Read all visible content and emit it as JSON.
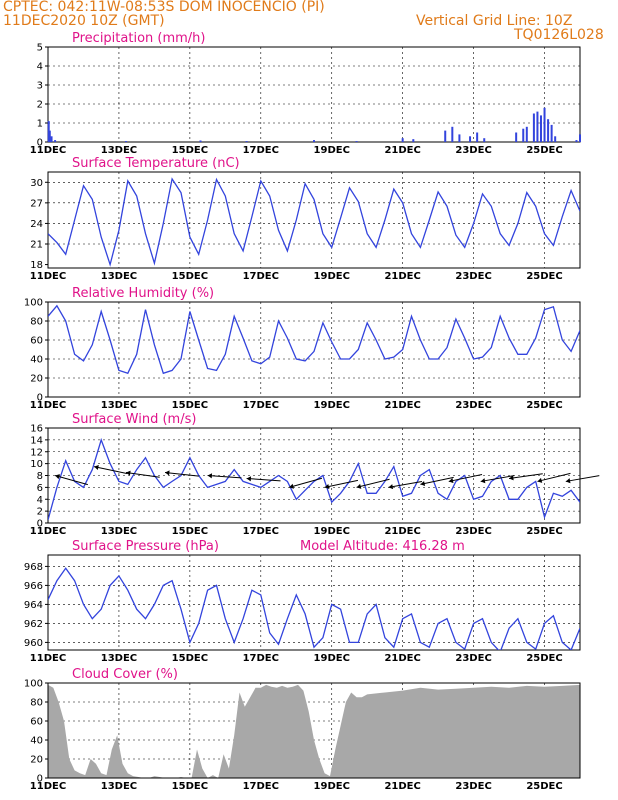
{
  "header": {
    "line1": "CPTEC:   042:11W-08:53S   DOM INOCENCIO (PI)",
    "date": "11DEC2020 10Z (GMT)",
    "grid_note": "Vertical Grid Line: 10Z",
    "code": "TQ0126L028"
  },
  "colors": {
    "header": "#e07b1a",
    "title": "#e0138a",
    "series": "#3344dd",
    "cloud": "#a8a8a8"
  },
  "x_ticks": [
    "11DEC",
    "13DEC",
    "15DEC",
    "17DEC",
    "19DEC",
    "21DEC",
    "23DEC",
    "25DEC"
  ],
  "chart_data": [
    {
      "id": "precip",
      "type": "bar",
      "title": "Precipitation (mm/h)",
      "ylim": [
        0,
        5
      ],
      "yticks": [
        0,
        1,
        2,
        3,
        4,
        5
      ],
      "values": [
        [
          0.02,
          1.1
        ],
        [
          0.05,
          0.6
        ],
        [
          0.1,
          0.3
        ],
        [
          0.2,
          0.1
        ],
        [
          2.2,
          0.05
        ],
        [
          4.3,
          0.08
        ],
        [
          5.6,
          0.05
        ],
        [
          7.5,
          0.1
        ],
        [
          8.7,
          0.05
        ],
        [
          10.0,
          0.2
        ],
        [
          10.3,
          0.15
        ],
        [
          11.2,
          0.6
        ],
        [
          11.4,
          0.8
        ],
        [
          11.6,
          0.4
        ],
        [
          11.9,
          0.3
        ],
        [
          12.1,
          0.5
        ],
        [
          12.3,
          0.2
        ],
        [
          13.2,
          0.5
        ],
        [
          13.4,
          0.7
        ],
        [
          13.5,
          0.8
        ],
        [
          13.7,
          1.5
        ],
        [
          13.8,
          1.6
        ],
        [
          13.9,
          1.4
        ],
        [
          14.0,
          1.8
        ],
        [
          14.1,
          1.2
        ],
        [
          14.2,
          0.9
        ],
        [
          14.3,
          0.3
        ],
        [
          14.9,
          0.1
        ],
        [
          15.0,
          0.4
        ]
      ]
    },
    {
      "id": "temp",
      "type": "line",
      "title": "Surface Temperature (nC)",
      "ylim": [
        17.5,
        31.5
      ],
      "yticks": [
        18,
        21,
        24,
        27,
        30
      ],
      "x": [
        0,
        0.25,
        0.5,
        0.75,
        1,
        1.25,
        1.5,
        1.75,
        2,
        2.25,
        2.5,
        2.75,
        3,
        3.25,
        3.5,
        3.75,
        4,
        4.25,
        4.5,
        4.75,
        5,
        5.25,
        5.5,
        5.75,
        6,
        6.25,
        6.5,
        6.75,
        7,
        7.25,
        7.5,
        7.75,
        8,
        8.25,
        8.5,
        8.75,
        9,
        9.25,
        9.5,
        9.75,
        10,
        10.25,
        10.5,
        10.75,
        11,
        11.25,
        11.5,
        11.75,
        12,
        12.25,
        12.5,
        12.75,
        13,
        13.25,
        13.5,
        13.75,
        14,
        14.25,
        14.5,
        14.75,
        15
      ],
      "values": [
        22.5,
        21.2,
        19.5,
        24.5,
        29.5,
        27.5,
        22.0,
        18.0,
        23.0,
        30.2,
        28.0,
        22.5,
        18.2,
        24.0,
        30.5,
        28.5,
        22.0,
        19.5,
        24.5,
        30.4,
        28.0,
        22.5,
        20.0,
        25.0,
        30.2,
        28.0,
        23.0,
        20.0,
        24.5,
        29.8,
        27.5,
        22.5,
        20.5,
        24.8,
        29.2,
        27.2,
        22.5,
        20.5,
        24.5,
        29.0,
        27.0,
        22.5,
        20.5,
        24.5,
        28.6,
        26.5,
        22.3,
        20.5,
        24.0,
        28.3,
        26.5,
        22.5,
        20.8,
        24.0,
        28.5,
        26.5,
        22.5,
        20.8,
        25.0,
        28.8,
        25.8
      ]
    },
    {
      "id": "rh",
      "type": "line",
      "title": "Relative Humidity (%)",
      "ylim": [
        0,
        100
      ],
      "yticks": [
        0,
        20,
        40,
        60,
        80,
        100
      ],
      "x": [
        0,
        0.25,
        0.5,
        0.75,
        1,
        1.25,
        1.5,
        1.75,
        2,
        2.25,
        2.5,
        2.75,
        3,
        3.25,
        3.5,
        3.75,
        4,
        4.25,
        4.5,
        4.75,
        5,
        5.25,
        5.5,
        5.75,
        6,
        6.25,
        6.5,
        6.75,
        7,
        7.25,
        7.5,
        7.75,
        8,
        8.25,
        8.5,
        8.75,
        9,
        9.25,
        9.5,
        9.75,
        10,
        10.25,
        10.5,
        10.75,
        11,
        11.25,
        11.5,
        11.75,
        12,
        12.25,
        12.5,
        12.75,
        13,
        13.25,
        13.5,
        13.75,
        14,
        14.25,
        14.5,
        14.75,
        15
      ],
      "values": [
        85,
        96,
        80,
        45,
        38,
        55,
        90,
        60,
        28,
        25,
        45,
        92,
        55,
        25,
        28,
        40,
        90,
        60,
        30,
        28,
        45,
        85,
        62,
        38,
        35,
        42,
        80,
        62,
        40,
        38,
        48,
        78,
        58,
        40,
        40,
        50,
        78,
        60,
        40,
        42,
        50,
        85,
        60,
        40,
        40,
        52,
        82,
        62,
        40,
        42,
        52,
        85,
        62,
        45,
        45,
        62,
        92,
        95,
        60,
        48,
        70
      ]
    },
    {
      "id": "wind",
      "type": "line",
      "title": "Surface Wind (m/s)",
      "ylim": [
        0,
        16
      ],
      "yticks": [
        0,
        2,
        4,
        6,
        8,
        10,
        12,
        14,
        16
      ],
      "x": [
        0,
        0.25,
        0.5,
        0.75,
        1,
        1.25,
        1.5,
        1.75,
        2,
        2.25,
        2.5,
        2.75,
        3,
        3.25,
        3.5,
        3.75,
        4,
        4.25,
        4.5,
        4.75,
        5,
        5.25,
        5.5,
        5.75,
        6,
        6.25,
        6.5,
        6.75,
        7,
        7.25,
        7.5,
        7.75,
        8,
        8.25,
        8.5,
        8.75,
        9,
        9.25,
        9.5,
        9.75,
        10,
        10.25,
        10.5,
        10.75,
        11,
        11.25,
        11.5,
        11.75,
        12,
        12.25,
        12.5,
        12.75,
        13,
        13.25,
        13.5,
        13.75,
        14,
        14.25,
        14.5,
        14.75,
        15
      ],
      "values": [
        0.5,
        6,
        10.5,
        7,
        6,
        9,
        14,
        10,
        7,
        6.5,
        9,
        11,
        8,
        6,
        7,
        8,
        11,
        8,
        6,
        6.5,
        7,
        9,
        7,
        6.5,
        6,
        7,
        8,
        7,
        4,
        5.5,
        7,
        8,
        3.5,
        5,
        7,
        10,
        5,
        5,
        7,
        9.5,
        4.5,
        5,
        8,
        9,
        5,
        4,
        7,
        8,
        4,
        4.5,
        7,
        8,
        4,
        4,
        6,
        7,
        1,
        5,
        4.5,
        5.5,
        3.5
      ],
      "barbs": [
        [
          0.2,
          8,
          -0.8
        ],
        [
          1.3,
          9.5,
          -0.6
        ],
        [
          2.2,
          8.5,
          -0.4
        ],
        [
          3.3,
          8.5,
          -0.3
        ],
        [
          4.5,
          8,
          -0.2
        ],
        [
          5.6,
          7.5,
          -0.2
        ],
        [
          6.8,
          6,
          0.8
        ],
        [
          7.8,
          6,
          0.6
        ],
        [
          8.7,
          6,
          0.7
        ],
        [
          9.6,
          6,
          0.5
        ],
        [
          10.5,
          6.5,
          0.6
        ],
        [
          11.3,
          7,
          0.6
        ],
        [
          12.2,
          7,
          0.5
        ],
        [
          13.0,
          7.5,
          0.4
        ],
        [
          13.8,
          7,
          0.7
        ],
        [
          14.6,
          7,
          0.5
        ]
      ]
    },
    {
      "id": "press",
      "type": "line",
      "title": "Surface Pressure (hPa)",
      "annotation": "Model Altitude: 416.28 m",
      "ylim": [
        959.2,
        969.2
      ],
      "yticks": [
        960,
        962,
        964,
        966,
        968
      ],
      "x": [
        0,
        0.25,
        0.5,
        0.75,
        1,
        1.25,
        1.5,
        1.75,
        2,
        2.25,
        2.5,
        2.75,
        3,
        3.25,
        3.5,
        3.75,
        4,
        4.25,
        4.5,
        4.75,
        5,
        5.25,
        5.5,
        5.75,
        6,
        6.25,
        6.5,
        6.75,
        7,
        7.25,
        7.5,
        7.75,
        8,
        8.25,
        8.5,
        8.75,
        9,
        9.25,
        9.5,
        9.75,
        10,
        10.25,
        10.5,
        10.75,
        11,
        11.25,
        11.5,
        11.75,
        12,
        12.25,
        12.5,
        12.75,
        13,
        13.25,
        13.5,
        13.75,
        14,
        14.25,
        14.5,
        14.75,
        15
      ],
      "values": [
        964.5,
        966.5,
        967.8,
        966.5,
        964.0,
        962.5,
        963.5,
        966.0,
        967.0,
        965.5,
        963.5,
        962.5,
        964.0,
        966.0,
        966.5,
        963.5,
        960.0,
        962.0,
        965.5,
        966.0,
        962.5,
        960.0,
        962.5,
        965.5,
        965.0,
        961.0,
        959.8,
        962.5,
        965.0,
        963.0,
        959.5,
        960.5,
        964.0,
        963.5,
        960.0,
        960.0,
        963.0,
        964.0,
        960.5,
        959.5,
        962.5,
        963.0,
        960.0,
        959.5,
        962.0,
        962.5,
        960.0,
        959.3,
        962.0,
        962.5,
        960.0,
        959.0,
        961.5,
        962.5,
        960.0,
        959.3,
        962.0,
        962.8,
        960.0,
        959.2,
        961.5
      ]
    },
    {
      "id": "cloud",
      "type": "area",
      "title": "Cloud Cover (%)",
      "ylim": [
        0,
        100
      ],
      "yticks": [
        0,
        20,
        40,
        60,
        80,
        100
      ],
      "x": [
        0,
        0.15,
        0.3,
        0.45,
        0.6,
        0.75,
        0.9,
        1.05,
        1.2,
        1.35,
        1.5,
        1.65,
        1.8,
        1.95,
        2.1,
        2.25,
        2.4,
        2.55,
        2.7,
        2.85,
        3.0,
        3.15,
        3.3,
        3.45,
        3.6,
        3.75,
        3.9,
        4.05,
        4.2,
        4.35,
        4.5,
        4.65,
        4.8,
        4.95,
        5.1,
        5.25,
        5.4,
        5.55,
        5.7,
        5.85,
        6.0,
        6.15,
        6.3,
        6.45,
        6.6,
        6.75,
        6.9,
        7.05,
        7.2,
        7.35,
        7.5,
        7.65,
        7.8,
        7.95,
        8.1,
        8.25,
        8.4,
        8.55,
        8.7,
        8.85,
        9.0,
        9.5,
        10.0,
        10.5,
        11.0,
        11.5,
        12.0,
        12.5,
        13.0,
        13.5,
        14.0,
        14.5,
        15.0
      ],
      "values": [
        98,
        95,
        80,
        60,
        20,
        8,
        5,
        3,
        20,
        15,
        5,
        3,
        30,
        45,
        15,
        5,
        2,
        1,
        0,
        0,
        2,
        1,
        0,
        0,
        0,
        1,
        0,
        0,
        30,
        10,
        0,
        3,
        0,
        25,
        10,
        45,
        90,
        75,
        85,
        95,
        95,
        98,
        96,
        95,
        97,
        95,
        96,
        98,
        92,
        70,
        40,
        20,
        5,
        2,
        30,
        55,
        80,
        90,
        85,
        85,
        88,
        90,
        92,
        95,
        93,
        94,
        95,
        96,
        95,
        97,
        96,
        97,
        98
      ]
    }
  ]
}
